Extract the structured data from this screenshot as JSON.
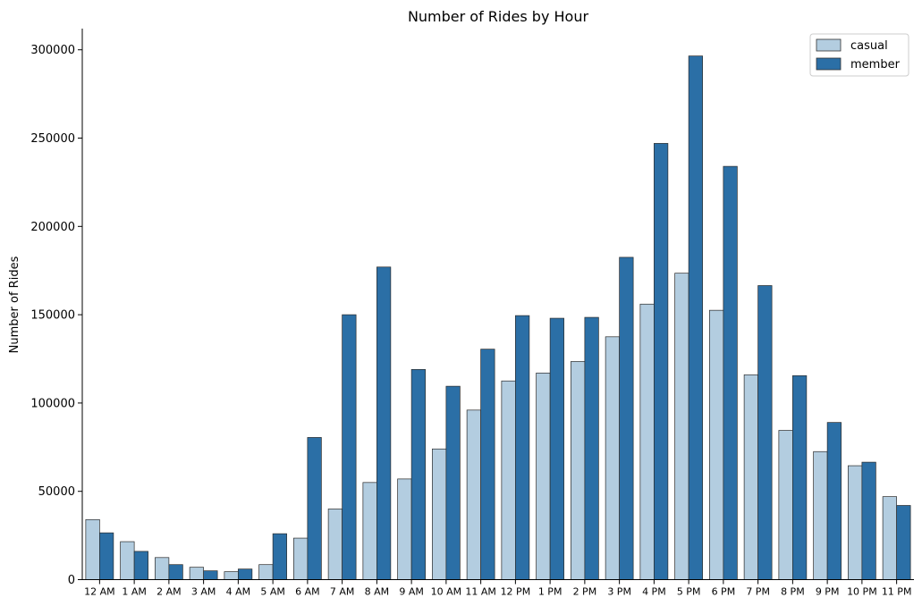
{
  "chart_data": {
    "type": "bar",
    "title": "Number of Rides by Hour",
    "xlabel": "",
    "ylabel": "Number of Rides",
    "ylim": [
      0,
      312000
    ],
    "yticks": [
      0,
      50000,
      100000,
      150000,
      200000,
      250000,
      300000
    ],
    "legend_position": "top-right",
    "categories": [
      "12 AM",
      "1 AM",
      "2 AM",
      "3 AM",
      "4 AM",
      "5 AM",
      "6 AM",
      "7 AM",
      "8 AM",
      "9 AM",
      "10 AM",
      "11 AM",
      "12 PM",
      "1 PM",
      "2 PM",
      "3 PM",
      "4 PM",
      "5 PM",
      "6 PM",
      "7 PM",
      "8 PM",
      "9 PM",
      "10 PM",
      "11 PM"
    ],
    "series": [
      {
        "name": "casual",
        "color": "#b3cde0",
        "values": [
          34000,
          21500,
          12500,
          7000,
          4500,
          8500,
          23500,
          40000,
          55000,
          57000,
          74000,
          96000,
          112500,
          117000,
          123500,
          137500,
          156000,
          173500,
          152500,
          116000,
          84500,
          72500,
          64500,
          47000
        ]
      },
      {
        "name": "member",
        "color": "#2b6fa6",
        "values": [
          26500,
          16000,
          8500,
          5000,
          6000,
          26000,
          80500,
          150000,
          177000,
          119000,
          109500,
          130500,
          149500,
          148000,
          148500,
          182500,
          247000,
          296500,
          234000,
          166500,
          115500,
          89000,
          66500,
          42000
        ]
      }
    ]
  }
}
